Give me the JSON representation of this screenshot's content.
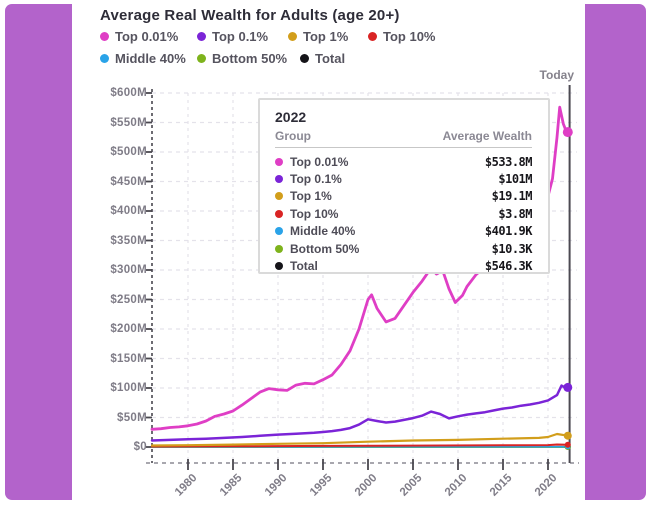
{
  "frame": {
    "color": "#b363cb"
  },
  "title": "Average Real Wealth for Adults (age 20+)",
  "today_label": "Today",
  "legend": {
    "items": [
      {
        "label": "Top 0.01%",
        "color": "#df3ec5"
      },
      {
        "label": "Top 0.1%",
        "color": "#7b24d7"
      },
      {
        "label": "Top 1%",
        "color": "#d29e1b"
      },
      {
        "label": "Top 10%",
        "color": "#d92424"
      },
      {
        "label": "Middle 40%",
        "color": "#2aa3e8"
      },
      {
        "label": "Bottom 50%",
        "color": "#7eb31c"
      },
      {
        "label": "Total",
        "color": "#151419"
      }
    ]
  },
  "tooltip": {
    "year": "2022",
    "group_header": "Group",
    "value_header": "Average Wealth",
    "rows": [
      {
        "label": "Top 0.01%",
        "color": "#df3ec5",
        "value": "$533.8M"
      },
      {
        "label": "Top 0.1%",
        "color": "#7b24d7",
        "value": "$101M"
      },
      {
        "label": "Top 1%",
        "color": "#d29e1b",
        "value": "$19.1M"
      },
      {
        "label": "Top 10%",
        "color": "#d92424",
        "value": "$3.8M"
      },
      {
        "label": "Middle 40%",
        "color": "#2aa3e8",
        "value": "$401.9K"
      },
      {
        "label": "Bottom 50%",
        "color": "#7eb31c",
        "value": "$10.3K"
      },
      {
        "label": "Total",
        "color": "#151419",
        "value": "$546.3K"
      }
    ]
  },
  "chart_data": {
    "type": "line",
    "title": "Average Real Wealth for Adults (age 20+)",
    "units": "millions of dollars (M$)",
    "xlim": [
      1976,
      2023
    ],
    "ylim": [
      0,
      600
    ],
    "grid": true,
    "legend_position": "top",
    "x_ticks": [
      1980,
      1985,
      1990,
      1995,
      2000,
      2005,
      2010,
      2015,
      2020
    ],
    "y_ticks": [
      {
        "v": 0,
        "label": "$0"
      },
      {
        "v": 50,
        "label": "$50M"
      },
      {
        "v": 100,
        "label": "$100M"
      },
      {
        "v": 150,
        "label": "$150M"
      },
      {
        "v": 200,
        "label": "$200M"
      },
      {
        "v": 250,
        "label": "$250M"
      },
      {
        "v": 300,
        "label": "$300M"
      },
      {
        "v": 350,
        "label": "$350M"
      },
      {
        "v": 400,
        "label": "$400M"
      },
      {
        "v": 450,
        "label": "$450M"
      },
      {
        "v": 500,
        "label": "$500M"
      },
      {
        "v": 550,
        "label": "$550M"
      },
      {
        "v": 600,
        "label": "$600M"
      }
    ],
    "annotation": {
      "label": "Today",
      "x": 2022.4
    },
    "series": [
      {
        "name": "Top 0.01%",
        "color": "#df3ec5",
        "width": 2.8,
        "dot_r": 5,
        "points": [
          [
            1976,
            30
          ],
          [
            1977,
            31
          ],
          [
            1978,
            33
          ],
          [
            1979,
            34
          ],
          [
            1980,
            36
          ],
          [
            1981,
            39
          ],
          [
            1982,
            44
          ],
          [
            1983,
            52
          ],
          [
            1984,
            56
          ],
          [
            1985,
            61
          ],
          [
            1986,
            71
          ],
          [
            1987,
            82
          ],
          [
            1988,
            93
          ],
          [
            1989,
            99
          ],
          [
            1990,
            97
          ],
          [
            1991,
            96
          ],
          [
            1992,
            105
          ],
          [
            1993,
            108
          ],
          [
            1994,
            107
          ],
          [
            1995,
            114
          ],
          [
            1996,
            122
          ],
          [
            1997,
            140
          ],
          [
            1998,
            163
          ],
          [
            1999,
            200
          ],
          [
            2000,
            250
          ],
          [
            2000.4,
            258
          ],
          [
            2001,
            235
          ],
          [
            2002,
            212
          ],
          [
            2003,
            218
          ],
          [
            2004,
            240
          ],
          [
            2005,
            262
          ],
          [
            2006,
            281
          ],
          [
            2007,
            303
          ],
          [
            2007.6,
            293
          ],
          [
            2008.3,
            299
          ],
          [
            2009,
            268
          ],
          [
            2009.7,
            245
          ],
          [
            2010.5,
            257
          ],
          [
            2011,
            272
          ],
          [
            2012,
            292
          ],
          [
            2013,
            305
          ],
          [
            2014,
            318
          ],
          [
            2015,
            332
          ],
          [
            2016,
            345
          ],
          [
            2017,
            358
          ],
          [
            2018,
            372
          ],
          [
            2019,
            390
          ],
          [
            2020,
            425
          ],
          [
            2020.5,
            455
          ],
          [
            2021,
            525
          ],
          [
            2021.3,
            576
          ],
          [
            2021.7,
            548
          ],
          [
            2022,
            536
          ],
          [
            2022.2,
            533.8
          ]
        ]
      },
      {
        "name": "Top 0.1%",
        "color": "#7b24d7",
        "width": 2.5,
        "dot_r": 4.5,
        "points": [
          [
            1976,
            11
          ],
          [
            1978,
            12
          ],
          [
            1980,
            13
          ],
          [
            1982,
            14
          ],
          [
            1984,
            15.5
          ],
          [
            1986,
            17
          ],
          [
            1988,
            19
          ],
          [
            1990,
            21
          ],
          [
            1992,
            22.5
          ],
          [
            1994,
            24
          ],
          [
            1995,
            25.5
          ],
          [
            1996,
            27
          ],
          [
            1997,
            29
          ],
          [
            1998,
            32
          ],
          [
            1999,
            38
          ],
          [
            2000,
            47
          ],
          [
            2001,
            44
          ],
          [
            2002,
            41.5
          ],
          [
            2003,
            43
          ],
          [
            2004,
            46
          ],
          [
            2005,
            49
          ],
          [
            2006,
            53
          ],
          [
            2007,
            60
          ],
          [
            2008,
            56
          ],
          [
            2009,
            48.5
          ],
          [
            2010,
            52
          ],
          [
            2011,
            55
          ],
          [
            2012,
            57
          ],
          [
            2013,
            59
          ],
          [
            2014,
            62
          ],
          [
            2015,
            65
          ],
          [
            2016,
            67
          ],
          [
            2017,
            70
          ],
          [
            2018,
            72
          ],
          [
            2019,
            75
          ],
          [
            2020,
            79
          ],
          [
            2021,
            88
          ],
          [
            2021.5,
            104
          ],
          [
            2022,
            100
          ],
          [
            2022.2,
            101
          ]
        ]
      },
      {
        "name": "Top 1%",
        "color": "#d29e1b",
        "width": 2.2,
        "dot_r": 4,
        "points": [
          [
            1976,
            2.5
          ],
          [
            1980,
            3
          ],
          [
            1985,
            4
          ],
          [
            1990,
            5.5
          ],
          [
            1995,
            6.5
          ],
          [
            2000,
            9
          ],
          [
            2005,
            11
          ],
          [
            2010,
            12
          ],
          [
            2015,
            14
          ],
          [
            2019,
            15.5
          ],
          [
            2020,
            17
          ],
          [
            2021,
            22
          ],
          [
            2022.2,
            19.1
          ]
        ]
      },
      {
        "name": "Top 10%",
        "color": "#d92424",
        "width": 2,
        "dot_r": 3,
        "points": [
          [
            1976,
            0.8
          ],
          [
            1985,
            1.2
          ],
          [
            1995,
            1.8
          ],
          [
            2005,
            2.4
          ],
          [
            2015,
            2.9
          ],
          [
            2020,
            3.3
          ],
          [
            2021,
            4.2
          ],
          [
            2022.2,
            3.8
          ]
        ]
      },
      {
        "name": "Middle 40%",
        "color": "#2aa3e8",
        "width": 1.6,
        "dot_r": 2.5,
        "points": [
          [
            1976,
            0.15
          ],
          [
            1990,
            0.2
          ],
          [
            2000,
            0.27
          ],
          [
            2010,
            0.3
          ],
          [
            2022.2,
            0.4019
          ]
        ]
      },
      {
        "name": "Bottom 50%",
        "color": "#7eb31c",
        "width": 2,
        "dot_r": 3,
        "points": [
          [
            1976,
            0.006
          ],
          [
            2000,
            0.008
          ],
          [
            2022.2,
            0.0103
          ]
        ]
      },
      {
        "name": "Total",
        "color": "#151419",
        "width": 1.6,
        "dot_r": 3,
        "points": [
          [
            1976,
            0.18
          ],
          [
            1990,
            0.25
          ],
          [
            2000,
            0.33
          ],
          [
            2010,
            0.38
          ],
          [
            2022.2,
            0.5463
          ]
        ]
      }
    ]
  }
}
